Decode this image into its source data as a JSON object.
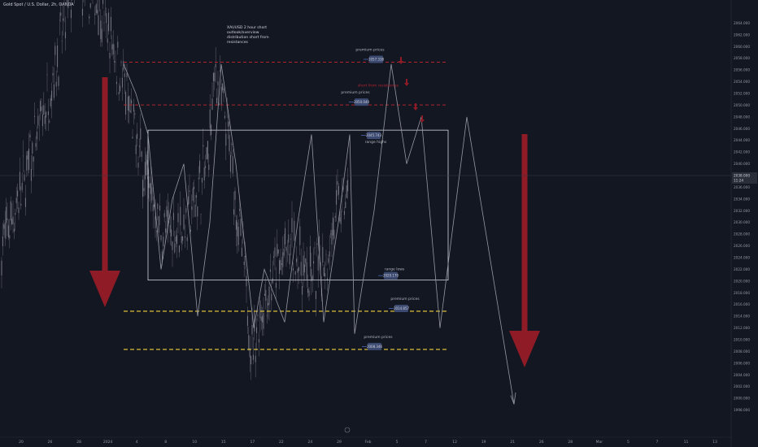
{
  "header": {
    "symbol": "Gold Spot / U.S. Dollar, 2h, OANDA",
    "currency": "USD"
  },
  "colors": {
    "background": "#131722",
    "candles": "#787b86",
    "red_line": "#b2242d",
    "yellow_line": "#f0d03b",
    "arrow_red": "#8e1b26",
    "label_box": "#3c4a72",
    "grid": "#1e222d"
  },
  "chart_data": {
    "type": "line",
    "ylim": [
      1996,
      2066
    ],
    "y_ticks": [
      "2064.000",
      "2062.000",
      "2060.000",
      "2058.000",
      "2056.000",
      "2054.000",
      "2052.000",
      "2050.000",
      "2048.000",
      "2046.000",
      "2044.000",
      "2042.000",
      "2040.000",
      "2038.000",
      "2036.000",
      "2034.000",
      "2032.000",
      "2030.000",
      "2028.000",
      "2026.000",
      "2024.000",
      "2022.000",
      "2020.000",
      "2018.000",
      "2016.000",
      "2014.000",
      "2012.000",
      "2010.000",
      "2008.000",
      "2006.000",
      "2004.000",
      "2002.000",
      "2000.000",
      "1998.000"
    ],
    "x_ticks": [
      "20",
      "26",
      "28",
      "2024",
      "4",
      "8",
      "10",
      "15",
      "17",
      "22",
      "24",
      "29",
      "Feb",
      "5",
      "7",
      "12",
      "19",
      "21",
      "26",
      "28",
      "Mar",
      "5",
      "7",
      "11",
      "13"
    ],
    "current_price": "2038.000",
    "current_sub": "11:24",
    "levels": [
      {
        "label": "premium prices",
        "value": "2057.338",
        "style": "red-dashed"
      },
      {
        "label": "premium prices",
        "value": "2050.040",
        "style": "red-dashed"
      },
      {
        "label": "range highs",
        "value": "2045.743",
        "style": "range"
      },
      {
        "label": "range lows",
        "value": "2020.170",
        "style": "range"
      },
      {
        "label": "premium prices",
        "value": "2014.857",
        "style": "yellow-dashed"
      },
      {
        "label": "premium prices",
        "value": "2008.346",
        "style": "yellow-dashed"
      }
    ],
    "annotation_short": "short from resistances",
    "note": "XAUUSD 2 hour short outlook/overview distribution short from resistances",
    "projection": [
      2055,
      2019,
      2040,
      2047,
      2014,
      2011,
      2013,
      2058,
      2053,
      2022,
      2046,
      2010,
      2012,
      2018,
      2046,
      2012,
      2057,
      2048,
      2019,
      2049,
      2010,
      2009,
      2043,
      2008,
      2020,
      2046,
      2011,
      2002,
      2044,
      2011,
      2048,
      2009,
      2056,
      2013,
      2045,
      2008,
      1999
    ]
  },
  "labels": {
    "note_lines": [
      "XAUUSD 2 hour short",
      "outlook/overview",
      "distribution short from",
      "resistances"
    ]
  }
}
